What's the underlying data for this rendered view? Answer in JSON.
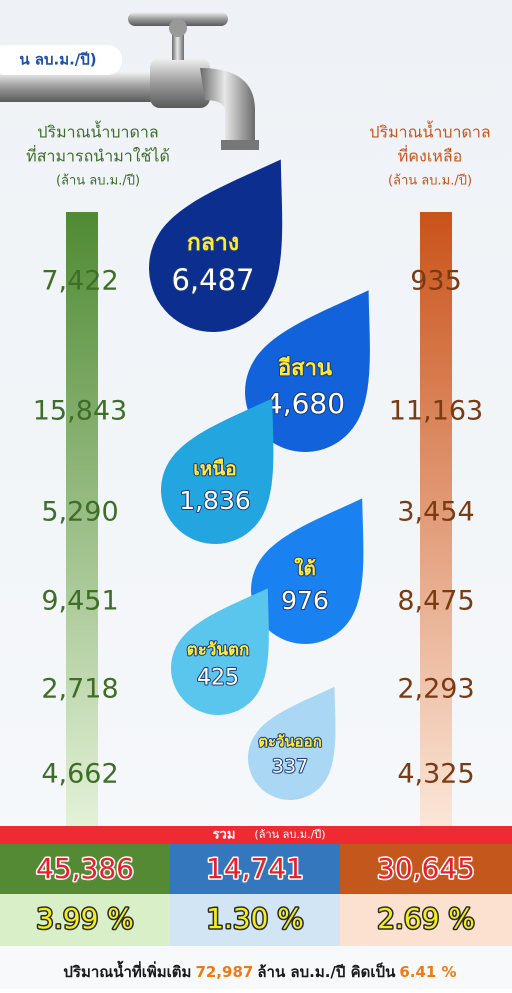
{
  "header": {
    "unit_label": "น ลบ.ม./ปี)"
  },
  "left_column": {
    "title": [
      "ปริมาณน้ำบาดาล",
      "ที่สามารถนำมาใช้ได้",
      "(ล้าน ลบ.ม./ปี)"
    ]
  },
  "right_column": {
    "title": [
      "ปริมาณน้ำบาดาล",
      "ที่คงเหลือ",
      "(ล้าน ลบ.ม./ปี)"
    ]
  },
  "rows": [
    {
      "region": "กลาง",
      "used": "6,487",
      "available": "7,422",
      "remaining": "935"
    },
    {
      "region": "อีสาน",
      "used": "4,680",
      "available": "15,843",
      "remaining": "11,163"
    },
    {
      "region": "เหนือ",
      "used": "1,836",
      "available": "5,290",
      "remaining": "3,454"
    },
    {
      "region": "ใต้",
      "used": "976",
      "available": "9,451",
      "remaining": "8,475"
    },
    {
      "region": "ตะวันตก",
      "used": "425",
      "available": "2,718",
      "remaining": "2,293"
    },
    {
      "region": "ตะวันออก",
      "used": "337",
      "available": "4,662",
      "remaining": "4,325"
    }
  ],
  "totals": {
    "label": "รวม",
    "unit": "(ล้าน ลบ.ม./ปี)",
    "values": [
      "45,386",
      "14,741",
      "30,645"
    ],
    "percents": [
      "3.99 %",
      "1.30 %",
      "2.69 %"
    ]
  },
  "footer": {
    "text1": "ปริมาณน้ำที่เพิ่มเติม",
    "amount": "72,987",
    "text2": "ล้าน ลบ.ม./ปี คิดเป็น",
    "percent": "6.41 %"
  }
}
